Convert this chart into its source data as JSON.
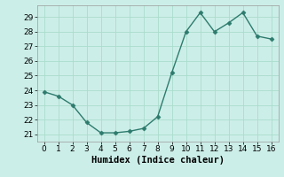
{
  "x": [
    0,
    1,
    2,
    3,
    4,
    5,
    6,
    7,
    8,
    9,
    10,
    11,
    12,
    13,
    14,
    15,
    16
  ],
  "y": [
    23.9,
    23.6,
    23.0,
    21.8,
    21.1,
    21.1,
    21.2,
    21.4,
    22.2,
    25.2,
    28.0,
    29.3,
    28.0,
    28.6,
    29.3,
    27.7,
    27.5
  ],
  "line_color": "#2d7b6d",
  "marker": "D",
  "marker_size": 2.5,
  "bg_color": "#cceee8",
  "grid_color": "#aaddcc",
  "xlabel": "Humidex (Indice chaleur)",
  "xlabel_fontsize": 7.5,
  "tick_fontsize": 6.5,
  "xlim": [
    -0.5,
    16.5
  ],
  "ylim": [
    20.5,
    29.8
  ],
  "yticks": [
    21,
    22,
    23,
    24,
    25,
    26,
    27,
    28,
    29
  ],
  "xticks": [
    0,
    1,
    2,
    3,
    4,
    5,
    6,
    7,
    8,
    9,
    10,
    11,
    12,
    13,
    14,
    15,
    16
  ]
}
